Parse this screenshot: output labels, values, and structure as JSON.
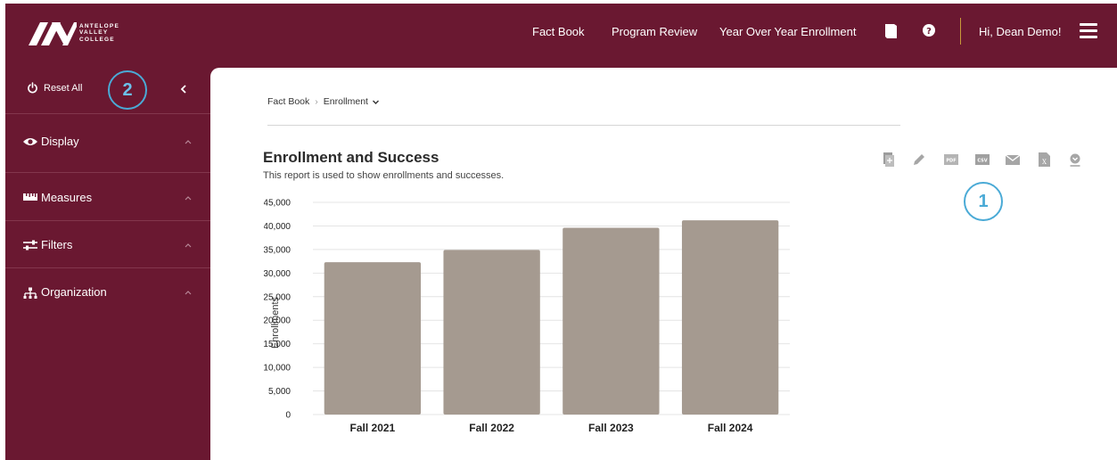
{
  "header": {
    "logo_lines": [
      "ANTELOPE",
      "VALLEY",
      "COLLEGE"
    ],
    "nav": [
      "Fact Book",
      "Program Review",
      "Year Over Year Enrollment"
    ],
    "icons": [
      "book-icon",
      "help-icon"
    ],
    "greeting": "Hi, Dean Demo!",
    "menu_icon": "hamburger-icon"
  },
  "sidebar": {
    "reset_label": "Reset All",
    "annotation": "2",
    "sections": [
      {
        "label": "Display",
        "icon": "eye-icon"
      },
      {
        "label": "Measures",
        "icon": "ruler-icon"
      },
      {
        "label": "Filters",
        "icon": "sliders-icon"
      },
      {
        "label": "Organization",
        "icon": "org-chart-icon"
      }
    ]
  },
  "breadcrumb": {
    "root": "Fact Book",
    "current": "Enrollment"
  },
  "report": {
    "title": "Enrollment and Success",
    "subtitle": "This report is used to show enrollments and successes.",
    "toolbar": [
      "add-report-icon",
      "edit-icon",
      "pdf-icon",
      "csv-icon",
      "email-icon",
      "excel-icon",
      "download-icon"
    ],
    "annotation": "1"
  },
  "colors": {
    "brand": "#6a1831",
    "bar": "#a59a90",
    "annotation": "#4aaad6"
  },
  "chart_data": {
    "type": "bar",
    "categories": [
      "Fall 2021",
      "Fall 2022",
      "Fall 2023",
      "Fall 2024"
    ],
    "values": [
      32300,
      34900,
      39600,
      41200
    ],
    "ylabel": "Enrollments",
    "ylim": [
      0,
      45000
    ],
    "yticks": [
      "0",
      "5,000",
      "10,000",
      "15,000",
      "20,000",
      "25,000",
      "30,000",
      "35,000",
      "40,000",
      "45,000"
    ],
    "grid": true
  }
}
